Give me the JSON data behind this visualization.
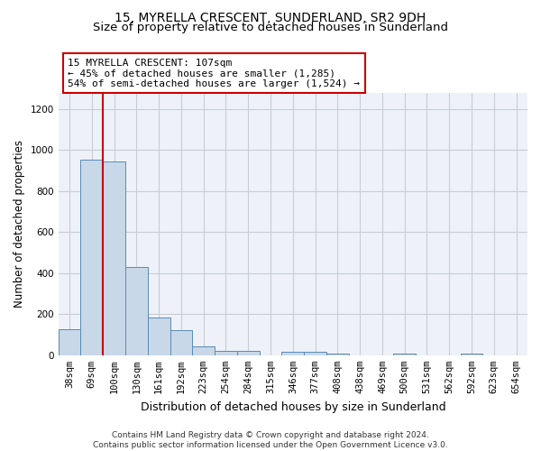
{
  "title": "15, MYRELLA CRESCENT, SUNDERLAND, SR2 9DH",
  "subtitle": "Size of property relative to detached houses in Sunderland",
  "xlabel": "Distribution of detached houses by size in Sunderland",
  "ylabel": "Number of detached properties",
  "categories": [
    "38sqm",
    "69sqm",
    "100sqm",
    "130sqm",
    "161sqm",
    "192sqm",
    "223sqm",
    "254sqm",
    "284sqm",
    "315sqm",
    "346sqm",
    "377sqm",
    "408sqm",
    "438sqm",
    "469sqm",
    "500sqm",
    "531sqm",
    "562sqm",
    "592sqm",
    "623sqm",
    "654sqm"
  ],
  "values": [
    125,
    955,
    945,
    428,
    185,
    122,
    45,
    20,
    20,
    0,
    18,
    18,
    10,
    0,
    0,
    10,
    0,
    0,
    10,
    0,
    0
  ],
  "bar_color": "#c8d8e8",
  "bar_edge_color": "#5a8ab5",
  "vline_color": "#cc0000",
  "vline_x": 2.0,
  "annotation_line1": "15 MYRELLA CRESCENT: 107sqm",
  "annotation_line2": "← 45% of detached houses are smaller (1,285)",
  "annotation_line3": "54% of semi-detached houses are larger (1,524) →",
  "annotation_box_facecolor": "#ffffff",
  "annotation_box_edgecolor": "#cc0000",
  "ylim": [
    0,
    1280
  ],
  "yticks": [
    0,
    200,
    400,
    600,
    800,
    1000,
    1200
  ],
  "grid_color": "#c8ccd4",
  "bg_color": "#eef2f8",
  "footer": "Contains HM Land Registry data © Crown copyright and database right 2024.\nContains public sector information licensed under the Open Government Licence v3.0.",
  "title_fontsize": 10,
  "subtitle_fontsize": 9.5,
  "xlabel_fontsize": 9,
  "ylabel_fontsize": 8.5,
  "tick_fontsize": 7.5,
  "annotation_fontsize": 8,
  "footer_fontsize": 6.5
}
